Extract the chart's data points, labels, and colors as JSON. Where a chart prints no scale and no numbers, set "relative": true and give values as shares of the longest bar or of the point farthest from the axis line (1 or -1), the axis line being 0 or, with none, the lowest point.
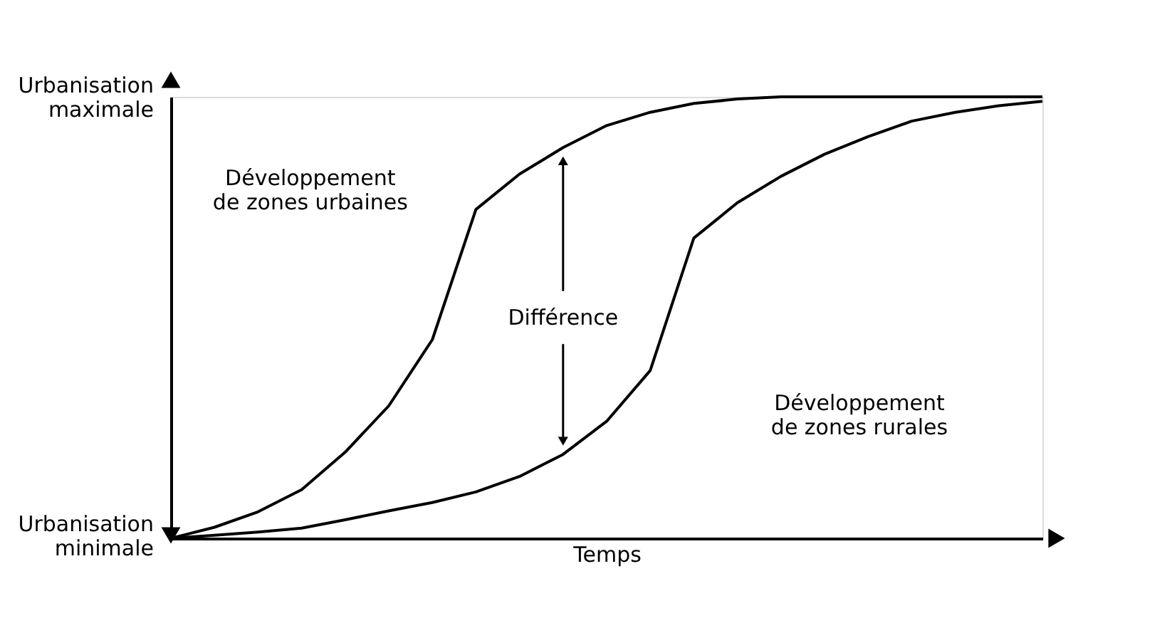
{
  "chart_data": {
    "type": "line",
    "relative": true,
    "xlabel": "Temps",
    "categories": [
      null,
      null,
      null,
      null,
      null,
      null,
      null,
      null,
      null,
      null,
      null,
      null,
      null,
      null,
      null,
      null,
      null,
      null,
      null,
      null,
      null
    ],
    "line_style": "solid",
    "series": [
      {
        "color": "#000000",
        "values": [
          0,
          0.025,
          0.06,
          0.11,
          0.195,
          0.3,
          0.45,
          0.745,
          0.825,
          0.885,
          0.935,
          0.965,
          0.985,
          0.995,
          1,
          1,
          1,
          1,
          1,
          1,
          1
        ]
      },
      {
        "color": "#000000",
        "values": [
          0,
          0.007,
          0.014,
          0.023,
          0.042,
          0.062,
          0.081,
          0.105,
          0.14,
          0.19,
          0.265,
          0.38,
          0.68,
          0.76,
          0.82,
          0.87,
          0.91,
          0.945,
          0.965,
          0.98,
          0.99
        ]
      }
    ],
    "annotations": [
      "Urbanisation\nmaximale",
      "Urbanisation\nminimale",
      "Développement\nde zones urbaines",
      "Différence",
      "Développement\nde zones rurales"
    ]
  }
}
